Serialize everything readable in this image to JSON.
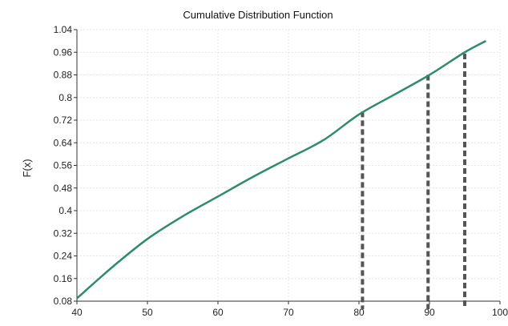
{
  "chart_data": {
    "type": "line",
    "title": "Cumulative Distribution Function",
    "xlabel": "",
    "ylabel": "F(x)",
    "xlim": [
      40,
      100
    ],
    "ylim": [
      0.08,
      1.04
    ],
    "x_ticks": [
      "40",
      "50",
      "60",
      "70",
      "80",
      "90",
      "100"
    ],
    "y_ticks": [
      "0.08",
      "0.16",
      "0.24",
      "0.32",
      "0.4",
      "0.48",
      "0.56",
      "0.64",
      "0.72",
      "0.8",
      "0.88",
      "0.96",
      "1.04"
    ],
    "grid": true,
    "series": [
      {
        "color": "#2e8b6e",
        "x": [
          40,
          45,
          50,
          55,
          60,
          65,
          70,
          75,
          80,
          85,
          90,
          95,
          98
        ],
        "y": [
          0.09,
          0.2,
          0.3,
          0.38,
          0.45,
          0.52,
          0.585,
          0.65,
          0.74,
          0.81,
          0.88,
          0.96,
          1.0
        ]
      }
    ],
    "reference_lines": [
      {
        "x": 80.5,
        "y": 0.75,
        "style": "dashed",
        "color": "#555555"
      },
      {
        "x": 89.8,
        "y": 0.88,
        "style": "dashed",
        "color": "#555555"
      },
      {
        "x": 95,
        "y": 0.955,
        "style": "dashed",
        "color": "#555555"
      }
    ]
  }
}
